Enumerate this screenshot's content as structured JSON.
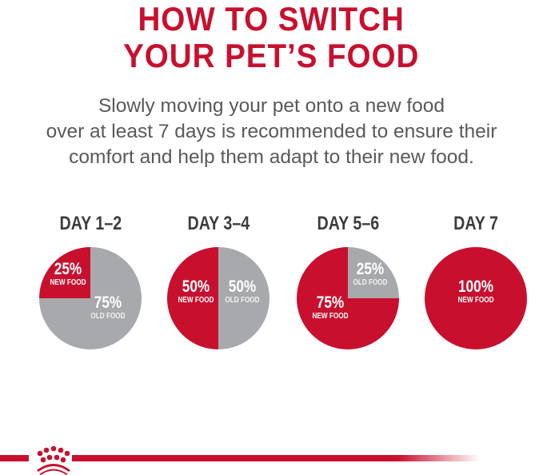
{
  "title_lines": [
    "HOW TO SWITCH",
    "YOUR PET’S FOOD"
  ],
  "subtitle_lines": [
    "Slowly moving your pet onto a new food",
    "over at least 7 days is recommended to ensure their",
    "comfort and help them adapt to their new food."
  ],
  "colors": {
    "brand_red": "#c8102e",
    "old_food_gray": "#a7a9ac",
    "text_gray": "#58595b"
  },
  "logo": {
    "icon": "royal-canin-crown-icon"
  },
  "chart_data": {
    "type": "pie",
    "charts": [
      {
        "label": "DAY 1–2",
        "slices": [
          {
            "name": "NEW FOOD",
            "value": 25,
            "text": "25%"
          },
          {
            "name": "OLD FOOD",
            "value": 75,
            "text": "75%"
          }
        ]
      },
      {
        "label": "DAY 3–4",
        "slices": [
          {
            "name": "NEW FOOD",
            "value": 50,
            "text": "50%"
          },
          {
            "name": "OLD FOOD",
            "value": 50,
            "text": "50%"
          }
        ]
      },
      {
        "label": "DAY 5–6",
        "slices": [
          {
            "name": "NEW FOOD",
            "value": 75,
            "text": "75%"
          },
          {
            "name": "OLD FOOD",
            "value": 25,
            "text": "25%"
          }
        ]
      },
      {
        "label": "DAY 7",
        "slices": [
          {
            "name": "NEW FOOD",
            "value": 100,
            "text": "100%"
          }
        ]
      }
    ]
  }
}
